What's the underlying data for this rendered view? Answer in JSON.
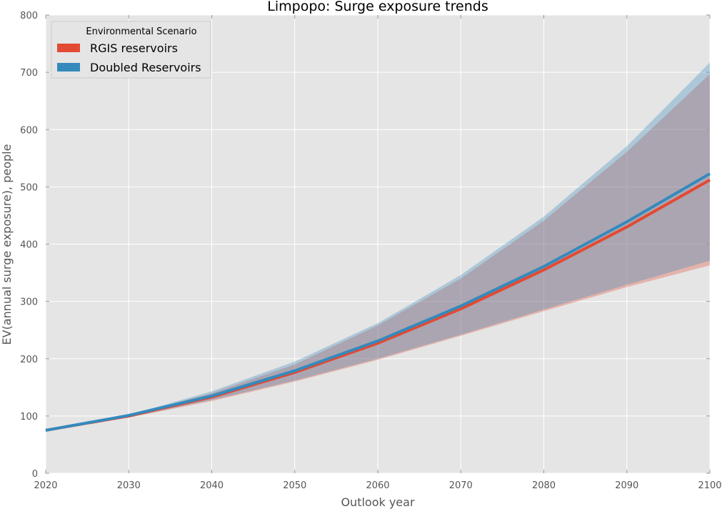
{
  "chart_data": {
    "type": "line",
    "title": "Limpopo: Surge exposure trends",
    "xlabel": "Outlook year",
    "ylabel": "EV(annual surge exposure), people",
    "xlim": [
      2020,
      2100
    ],
    "ylim": [
      0,
      800
    ],
    "xticks": [
      "2020",
      "2030",
      "2040",
      "2050",
      "2060",
      "2070",
      "2080",
      "2090",
      "2100"
    ],
    "yticks": [
      "0",
      "100",
      "200",
      "300",
      "400",
      "500",
      "600",
      "700",
      "800"
    ],
    "grid": true,
    "x": [
      2020,
      2030,
      2040,
      2050,
      2060,
      2070,
      2080,
      2090,
      2100
    ],
    "legend": {
      "title": "Environmental Scenario",
      "placement": "top-left"
    },
    "series": [
      {
        "name": "RGIS reservoirs",
        "color": "#e24a33",
        "values": [
          75,
          100,
          133,
          176,
          227,
          287,
          355,
          430,
          512
        ],
        "lower": [
          75,
          97,
          126,
          160,
          198,
          240,
          283,
          325,
          363
        ],
        "upper": [
          75,
          101,
          140,
          190,
          258,
          340,
          441,
          561,
          697
        ]
      },
      {
        "name": "Doubled Reservoirs",
        "color": "#348abd",
        "values": [
          75,
          101,
          135,
          179,
          231,
          292,
          361,
          439,
          523
        ],
        "lower": [
          75,
          98,
          128,
          162,
          200,
          242,
          286,
          329,
          371
        ],
        "upper": [
          75,
          102,
          143,
          195,
          262,
          346,
          448,
          571,
          717
        ]
      }
    ]
  }
}
